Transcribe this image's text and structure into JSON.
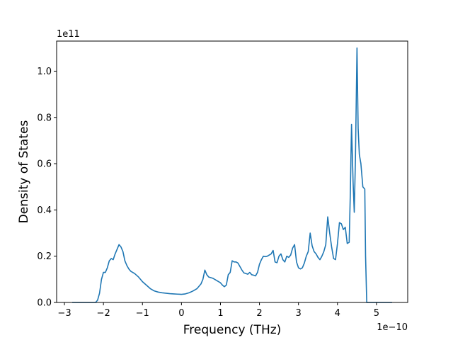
{
  "chart_data": {
    "type": "line",
    "title": "",
    "xlabel": "Frequency (THz)",
    "ylabel": "Density of States",
    "x_offset_text": "1e−10",
    "y_offset_text": "1e11",
    "x_scale": 1e-10,
    "y_scale": 100000000000.0,
    "xlim": [
      -3.2,
      5.8
    ],
    "ylim": [
      0,
      1.13
    ],
    "x_ticks": [
      -3,
      -2,
      -1,
      0,
      1,
      2,
      3,
      4,
      5
    ],
    "x_tick_labels": [
      "−3",
      "−2",
      "−1",
      "0",
      "1",
      "2",
      "3",
      "4",
      "5"
    ],
    "y_ticks": [
      0.0,
      0.2,
      0.4,
      0.6,
      0.8,
      1.0
    ],
    "y_tick_labels": [
      "0.0",
      "0.2",
      "0.4",
      "0.6",
      "0.8",
      "1.0"
    ],
    "grid": false,
    "series": [
      {
        "name": "",
        "color": "#1f77b4",
        "x": [
          -2.8,
          -2.2,
          -2.15,
          -2.1,
          -2.05,
          -2.0,
          -1.95,
          -1.9,
          -1.85,
          -1.8,
          -1.75,
          -1.7,
          -1.65,
          -1.6,
          -1.55,
          -1.5,
          -1.45,
          -1.4,
          -1.35,
          -1.3,
          -1.25,
          -1.2,
          -1.1,
          -1.0,
          -0.9,
          -0.8,
          -0.7,
          -0.6,
          -0.5,
          -0.4,
          -0.3,
          -0.2,
          -0.1,
          0.0,
          0.1,
          0.2,
          0.3,
          0.4,
          0.5,
          0.55,
          0.6,
          0.65,
          0.7,
          0.8,
          0.9,
          1.0,
          1.05,
          1.1,
          1.15,
          1.2,
          1.25,
          1.3,
          1.35,
          1.4,
          1.45,
          1.5,
          1.55,
          1.6,
          1.65,
          1.7,
          1.75,
          1.8,
          1.85,
          1.9,
          1.95,
          2.0,
          2.05,
          2.1,
          2.15,
          2.2,
          2.25,
          2.3,
          2.35,
          2.4,
          2.45,
          2.5,
          2.55,
          2.6,
          2.65,
          2.7,
          2.75,
          2.8,
          2.85,
          2.9,
          2.95,
          3.0,
          3.05,
          3.1,
          3.15,
          3.2,
          3.25,
          3.3,
          3.35,
          3.4,
          3.45,
          3.5,
          3.55,
          3.6,
          3.65,
          3.7,
          3.75,
          3.8,
          3.85,
          3.9,
          3.95,
          4.0,
          4.05,
          4.1,
          4.15,
          4.2,
          4.25,
          4.3,
          4.33,
          4.36,
          4.4,
          4.43,
          4.46,
          4.5,
          4.53,
          4.56,
          4.6,
          4.65,
          4.7,
          4.72,
          4.75,
          4.8,
          5.0,
          5.4
        ],
        "y": [
          0.0,
          0.0,
          0.01,
          0.04,
          0.1,
          0.13,
          0.13,
          0.15,
          0.18,
          0.19,
          0.185,
          0.21,
          0.23,
          0.25,
          0.24,
          0.22,
          0.18,
          0.16,
          0.145,
          0.135,
          0.13,
          0.125,
          0.11,
          0.09,
          0.075,
          0.06,
          0.05,
          0.045,
          0.042,
          0.04,
          0.038,
          0.037,
          0.036,
          0.035,
          0.037,
          0.042,
          0.05,
          0.06,
          0.08,
          0.1,
          0.14,
          0.12,
          0.11,
          0.105,
          0.095,
          0.085,
          0.075,
          0.068,
          0.075,
          0.12,
          0.13,
          0.18,
          0.175,
          0.175,
          0.17,
          0.155,
          0.14,
          0.128,
          0.125,
          0.122,
          0.13,
          0.12,
          0.118,
          0.115,
          0.13,
          0.165,
          0.185,
          0.2,
          0.198,
          0.2,
          0.205,
          0.21,
          0.225,
          0.175,
          0.172,
          0.2,
          0.21,
          0.185,
          0.175,
          0.2,
          0.195,
          0.205,
          0.235,
          0.25,
          0.175,
          0.15,
          0.145,
          0.15,
          0.17,
          0.2,
          0.22,
          0.3,
          0.245,
          0.22,
          0.21,
          0.195,
          0.185,
          0.2,
          0.22,
          0.25,
          0.37,
          0.3,
          0.24,
          0.19,
          0.185,
          0.255,
          0.345,
          0.34,
          0.315,
          0.325,
          0.255,
          0.26,
          0.48,
          0.77,
          0.52,
          0.39,
          0.62,
          1.1,
          0.75,
          0.64,
          0.6,
          0.5,
          0.49,
          0.2,
          0.0,
          0.0,
          0.0,
          0.0
        ]
      }
    ]
  }
}
